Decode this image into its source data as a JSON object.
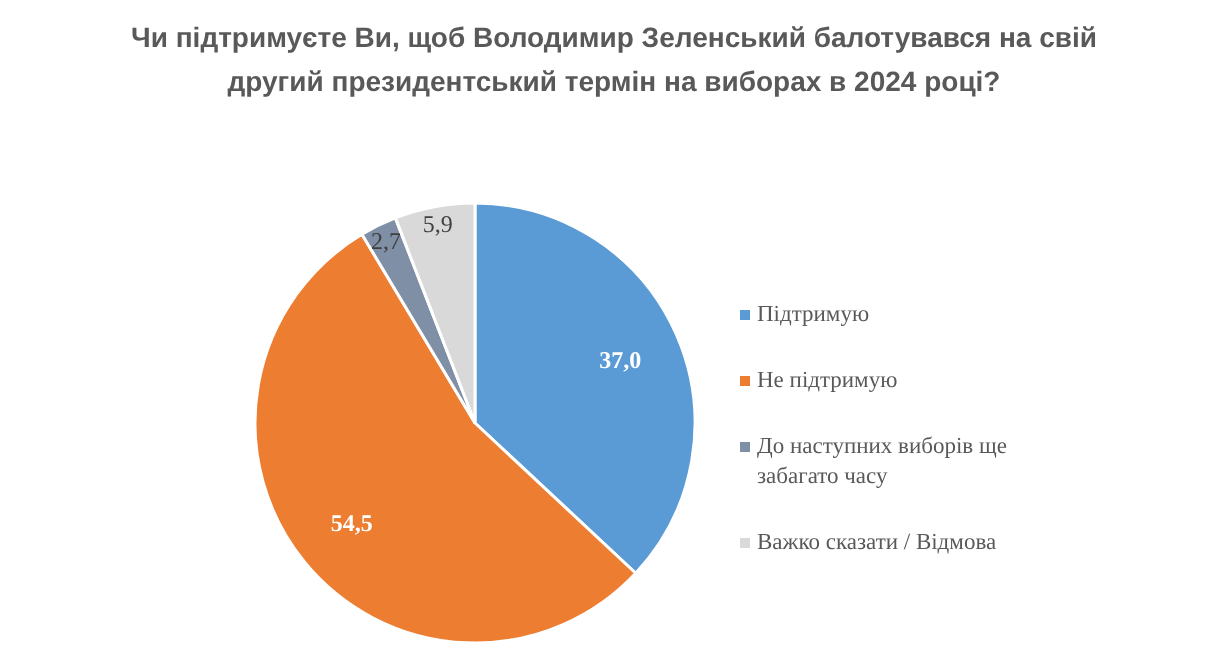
{
  "chart_data": {
    "type": "pie",
    "title": "Чи підтримуєте Ви, щоб Володимир Зеленський балотувався на свій другий президентський термін на виборах в 2024 році?",
    "categories": [
      "Підтримую",
      "Не підтримую",
      "До наступних виборів ще забагато часу",
      "Важко сказати / Відмова"
    ],
    "values": [
      37.0,
      54.5,
      2.7,
      5.9
    ],
    "value_labels": [
      "37,0",
      "54,5",
      "2,7",
      "5,9"
    ],
    "colors": [
      "#5b9bd5",
      "#ed7d31",
      "#7f8fa6",
      "#d9d9d9"
    ],
    "legend": "right"
  }
}
